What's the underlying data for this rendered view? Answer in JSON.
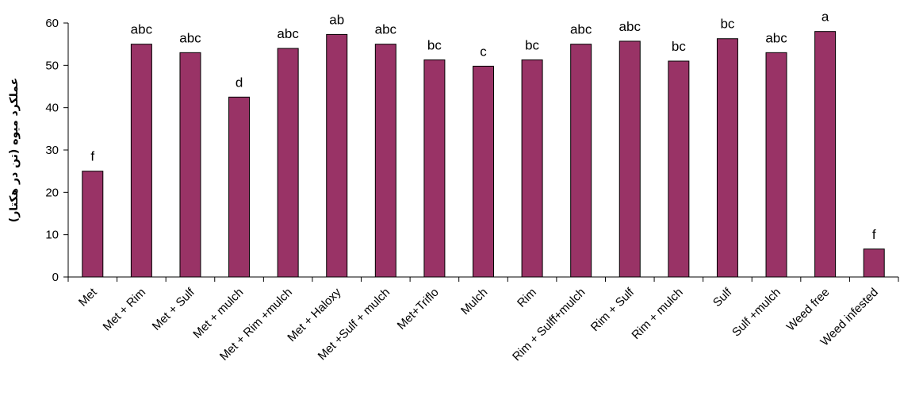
{
  "chart_data": {
    "type": "bar",
    "title": "",
    "xlabel": "",
    "ylabel": "عملکرد میوه (تن در هکتار)",
    "ylim": [
      0,
      60
    ],
    "yticks": [
      0,
      10,
      20,
      30,
      40,
      50,
      60
    ],
    "grid": false,
    "bar_color": "#993366",
    "categories": [
      "Met",
      "Met + Rim",
      "Met + Sulf",
      "Met + mulch",
      "Met + Rim +mulch",
      "Met + Haloxy",
      "Met +Sulf + mulch",
      "Met+Triflo",
      "Mulch",
      "Rim",
      "Rim + Sulff+mulch",
      "Rim + Sulf",
      "Rim + mulch",
      "Sulf",
      "Sulf +mulch",
      "Weed free",
      "Weed infested"
    ],
    "values": [
      25,
      55,
      53,
      42.5,
      54,
      57.3,
      55,
      51.3,
      49.8,
      51.3,
      55,
      55.7,
      51,
      56.3,
      53,
      58,
      6.6
    ],
    "annotations": [
      "f",
      "abc",
      "abc",
      "d",
      "abc",
      "ab",
      "abc",
      "bc",
      "c",
      "bc",
      "abc",
      "abc",
      "bc",
      "bc",
      "abc",
      "a",
      "f"
    ]
  }
}
